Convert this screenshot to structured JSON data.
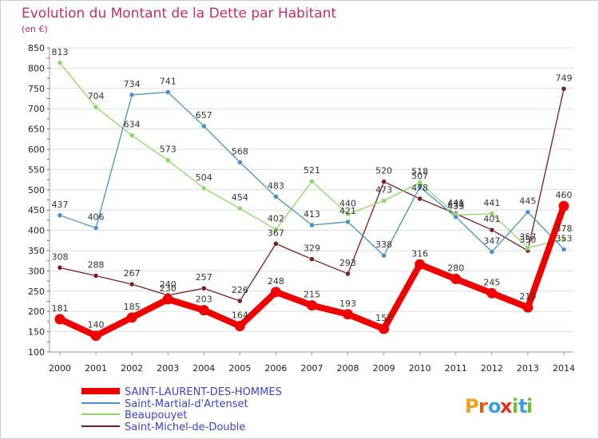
{
  "chart_data": {
    "type": "line",
    "title": "Evolution du Montant de la Dette par Habitant",
    "subtitle": "(en €)",
    "xlabel": "",
    "ylabel": "",
    "x": [
      "2000",
      "2001",
      "2002",
      "2003",
      "2004",
      "2005",
      "2006",
      "2007",
      "2008",
      "2009",
      "2010",
      "2011",
      "2012",
      "2013",
      "2014"
    ],
    "ylim": [
      100,
      850
    ],
    "yticks": [
      100,
      150,
      200,
      250,
      300,
      350,
      400,
      450,
      500,
      550,
      600,
      650,
      700,
      750,
      800,
      850
    ],
    "grid": "horizontal",
    "legend_position": "bottom-left",
    "series": [
      {
        "name": "SAINT-LAURENT-DES-HOMMES",
        "color": "#ee0000",
        "values": [
          181,
          140,
          185,
          230,
          203,
          164,
          248,
          215,
          193,
          157,
          316,
          280,
          245,
          210,
          460
        ],
        "labels": [
          "181",
          "140",
          "185",
          "230",
          "203",
          "164",
          "248",
          "215",
          "193",
          "157",
          "316",
          "280",
          "245",
          "210",
          "460"
        ]
      },
      {
        "name": "Saint-Martial-d'Artenset",
        "color": "#4a90c8",
        "values": [
          437,
          406,
          734,
          741,
          657,
          568,
          483,
          413,
          421,
          338,
          507,
          433,
          347,
          445,
          353
        ],
        "labels": [
          "437",
          "406",
          "734",
          "741",
          "657",
          "568",
          "483",
          "413",
          "421",
          "338",
          "507",
          "433",
          "347",
          "445",
          "353"
        ]
      },
      {
        "name": "Beaupouyet",
        "color": "#8ed86a",
        "values": [
          813,
          704,
          634,
          573,
          504,
          454,
          402,
          521,
          440,
          473,
          518,
          438,
          441,
          357,
          378
        ],
        "labels": [
          "813",
          "704",
          "634",
          "573",
          "504",
          "454",
          "402",
          "521",
          "440",
          "473",
          "518",
          "438",
          "441",
          "357",
          "378"
        ]
      },
      {
        "name": "Saint-Michel-de-Double",
        "color": "#7a1e1e",
        "values": [
          308,
          288,
          267,
          240,
          257,
          226,
          367,
          329,
          293,
          520,
          478,
          441,
          401,
          350,
          749
        ],
        "labels": [
          "308",
          "288",
          "267",
          "240",
          "257",
          "226",
          "367",
          "329",
          "293",
          "520",
          "478",
          "441",
          "401",
          "350",
          "749"
        ]
      }
    ]
  },
  "logo": {
    "letters": [
      "P",
      "r",
      "o",
      "x",
      "i",
      "t",
      "i"
    ],
    "colors": [
      "#f0a020",
      "#e85a10",
      "#3aa0e0",
      "#e83020",
      "#70c030",
      "#3aa0e0",
      "#70c030"
    ]
  }
}
